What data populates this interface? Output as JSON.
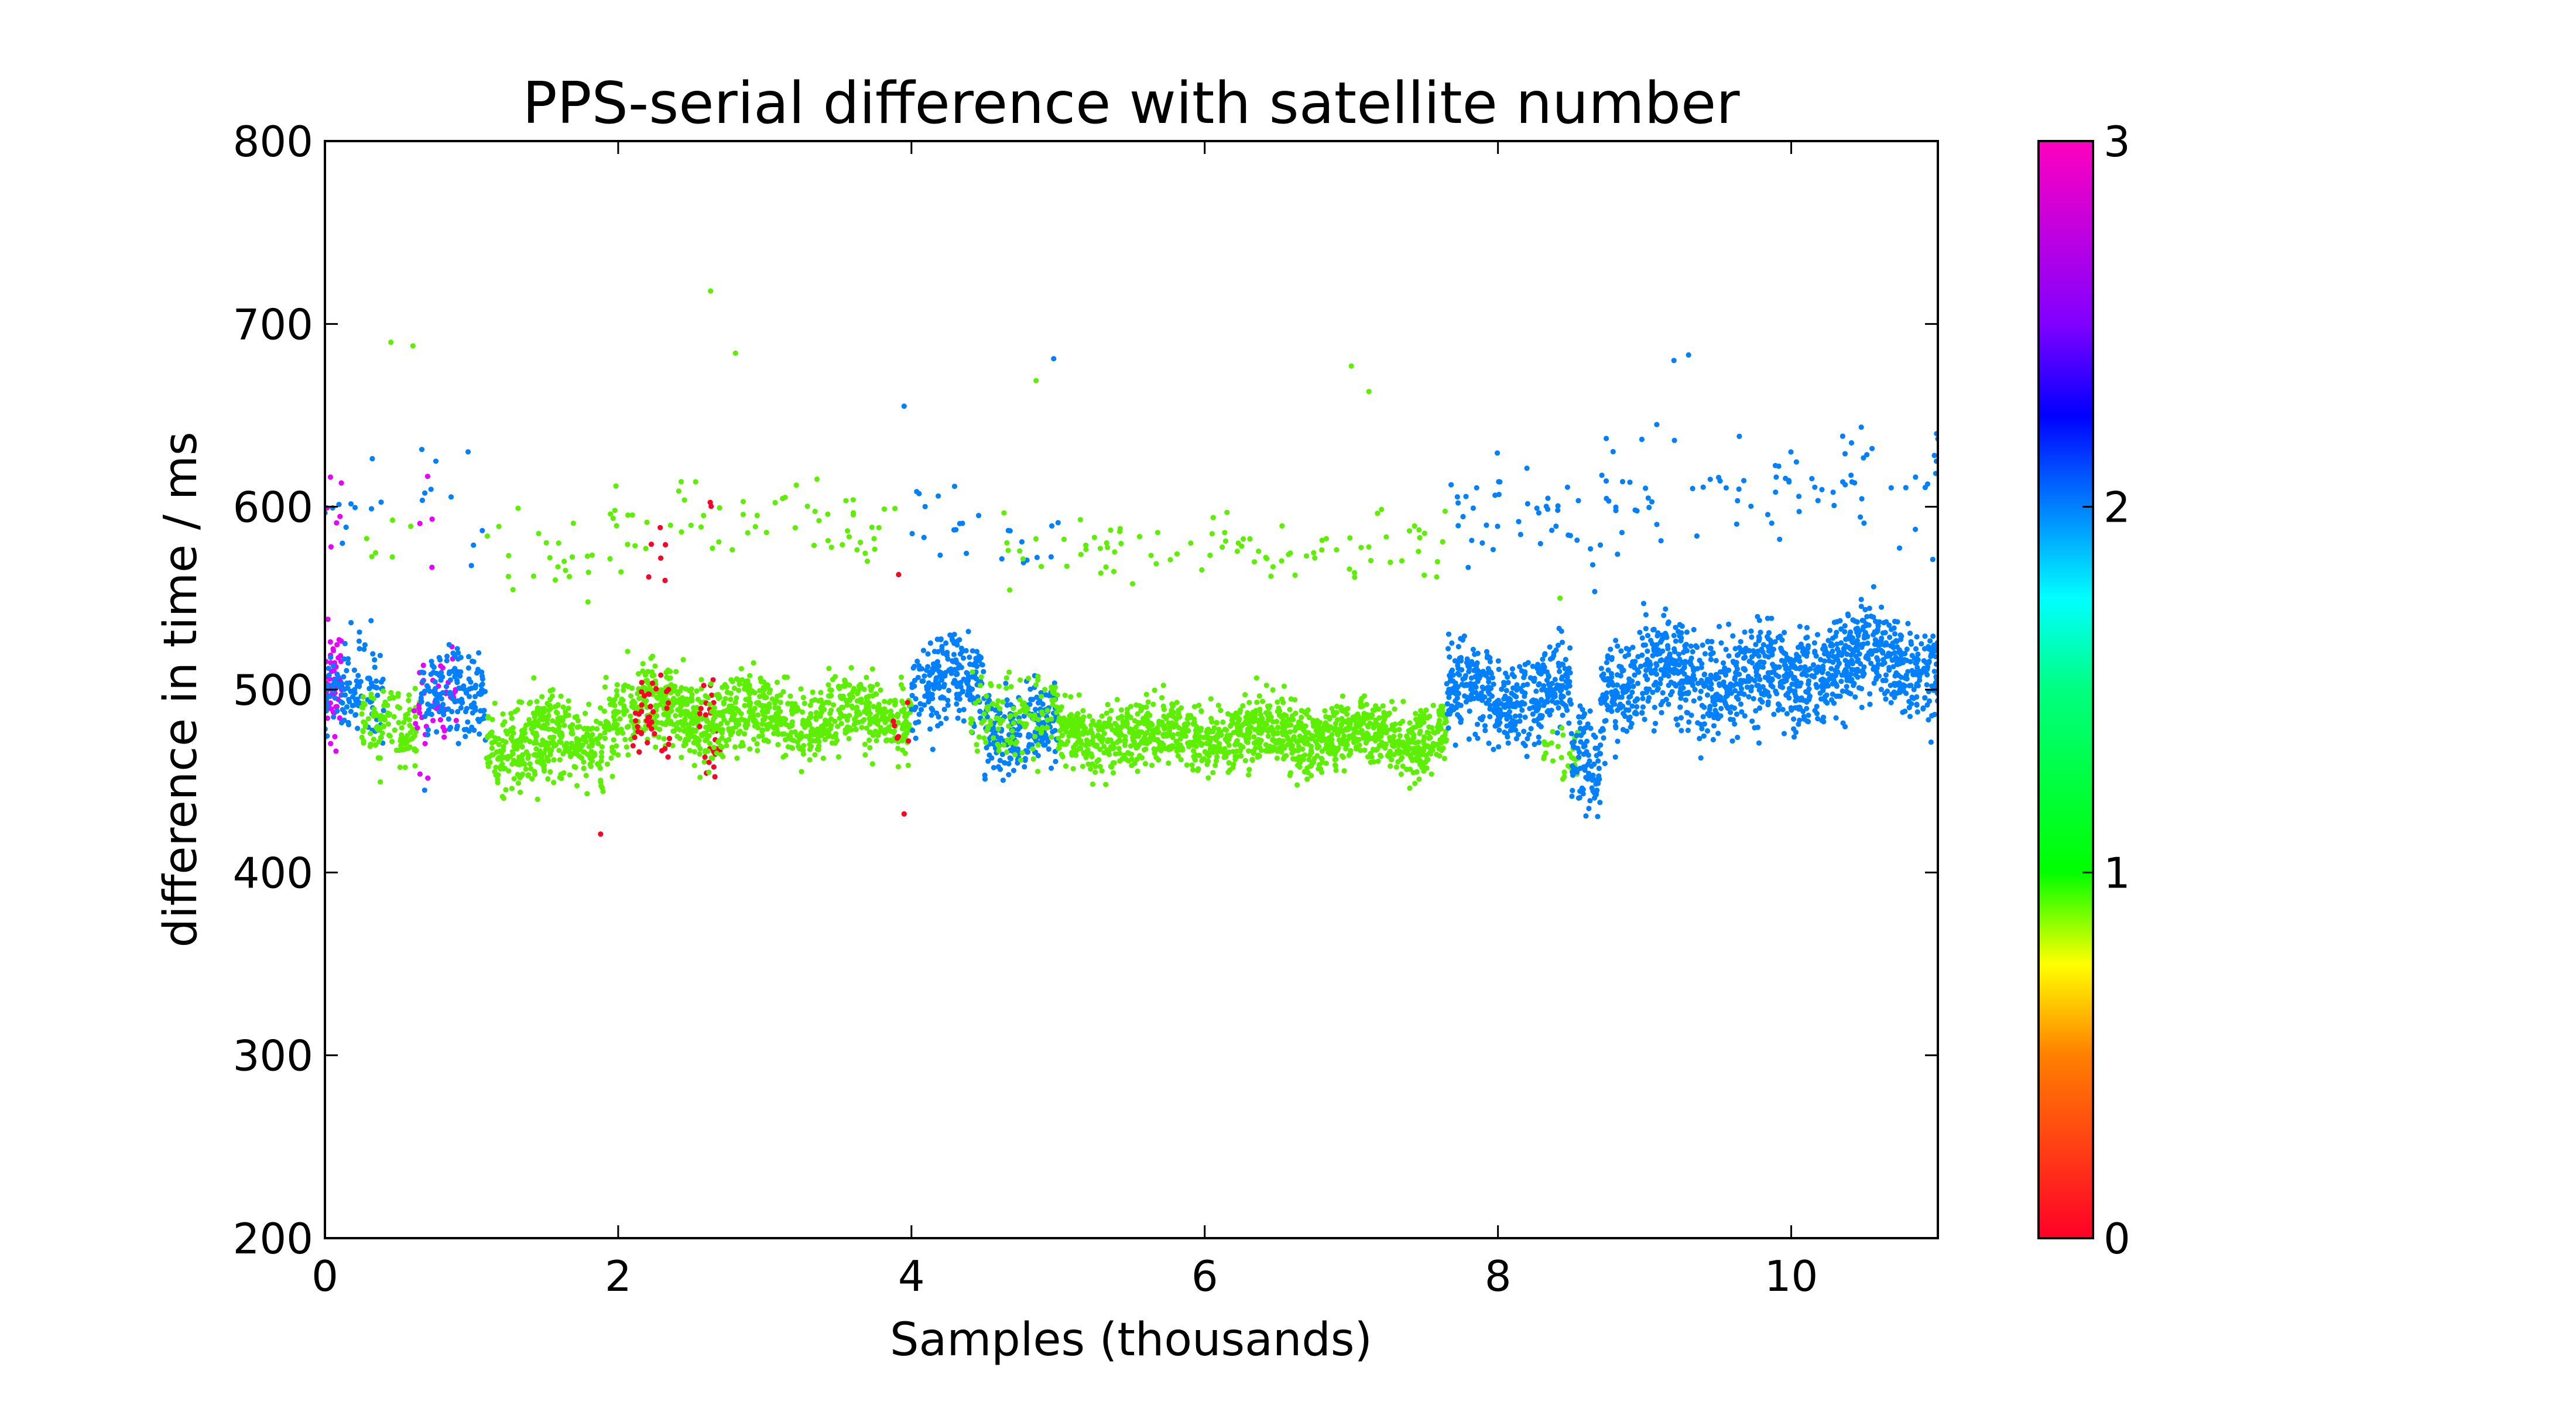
{
  "chart_data": {
    "type": "scatter",
    "title": "PPS-serial difference with satellite number",
    "xlabel": "Samples (thousands)",
    "ylabel": "difference in time / ms",
    "xlim": [
      0,
      11
    ],
    "ylim": [
      200,
      800
    ],
    "xticks": [
      0,
      2,
      4,
      6,
      8,
      10
    ],
    "yticks": [
      200,
      300,
      400,
      500,
      600,
      700,
      800
    ],
    "grid": false,
    "colorbar": {
      "label": "",
      "range": [
        0,
        3
      ],
      "ticks": [
        0,
        1,
        2,
        3
      ],
      "colormap": "gist_rainbow",
      "stops": [
        {
          "value": 0.0,
          "color": "#ff0028"
        },
        {
          "value": 0.5,
          "color": "#ff7f00"
        },
        {
          "value": 0.75,
          "color": "#ffff00"
        },
        {
          "value": 1.0,
          "color": "#00ff00"
        },
        {
          "value": 1.5,
          "color": "#00ff80"
        },
        {
          "value": 1.75,
          "color": "#00ffff"
        },
        {
          "value": 2.0,
          "color": "#0080ff"
        },
        {
          "value": 2.25,
          "color": "#0000ff"
        },
        {
          "value": 2.5,
          "color": "#8000ff"
        },
        {
          "value": 3.0,
          "color": "#ff00bf"
        }
      ]
    },
    "series_colors": {
      "0": "#ff0028",
      "1": "#5cf000",
      "2": "#0080ff",
      "3": "#e600ff"
    },
    "segments": [
      {
        "x": [
          0.0,
          0.12
        ],
        "sat": 3,
        "center": 500,
        "spread": 15,
        "n": 60,
        "upper_center": 598,
        "upper_n": 6
      },
      {
        "x": [
          0.0,
          0.4
        ],
        "sat": 2,
        "center": 495,
        "spread": 13,
        "n": 120,
        "upper_center": 598,
        "upper_n": 10
      },
      {
        "x": [
          0.25,
          0.65
        ],
        "sat": 1,
        "center": 482,
        "spread": 10,
        "n": 120,
        "upper_center": 580,
        "upper_n": 6
      },
      {
        "x": [
          0.6,
          0.9
        ],
        "sat": 3,
        "center": 490,
        "spread": 15,
        "n": 50,
        "upper_center": 596,
        "upper_n": 4
      },
      {
        "x": [
          0.65,
          1.1
        ],
        "sat": 2,
        "center": 495,
        "spread": 12,
        "n": 160,
        "upper_center": 600,
        "upper_n": 10
      },
      {
        "x": [
          1.1,
          1.9
        ],
        "sat": 1,
        "center": 472,
        "spread": 11,
        "n": 380,
        "upper_center": 575,
        "upper_n": 22
      },
      {
        "x": [
          1.9,
          2.6
        ],
        "sat": 1,
        "center": 487,
        "spread": 11,
        "n": 340,
        "upper_center": 588,
        "upper_n": 22
      },
      {
        "x": [
          2.1,
          2.35
        ],
        "sat": 0,
        "center": 478,
        "spread": 12,
        "n": 40,
        "upper_center": 578,
        "upper_n": 6
      },
      {
        "x": [
          2.55,
          2.7
        ],
        "sat": 0,
        "center": 485,
        "spread": 15,
        "n": 30,
        "upper_center": 590,
        "upper_n": 2
      },
      {
        "x": [
          2.6,
          4.0
        ],
        "sat": 1,
        "center": 485,
        "spread": 10,
        "n": 640,
        "upper_center": 590,
        "upper_n": 40
      },
      {
        "x": [
          3.85,
          3.98
        ],
        "sat": 0,
        "center": 480,
        "spread": 20,
        "n": 6,
        "upper_center": 580,
        "upper_n": 1
      },
      {
        "x": [
          4.0,
          4.5
        ],
        "sat": 2,
        "center": 502,
        "spread": 12,
        "n": 220,
        "upper_center": 598,
        "upper_n": 14
      },
      {
        "x": [
          4.5,
          5.0
        ],
        "sat": 2,
        "center": 480,
        "spread": 11,
        "n": 200,
        "upper_center": 578,
        "upper_n": 10
      },
      {
        "x": [
          4.4,
          5.0
        ],
        "sat": 1,
        "center": 485,
        "spread": 10,
        "n": 120,
        "upper_center": 582,
        "upper_n": 8
      },
      {
        "x": [
          5.0,
          7.65
        ],
        "sat": 1,
        "center": 475,
        "spread": 9,
        "n": 1300,
        "upper_center": 578,
        "upper_n": 80
      },
      {
        "x": [
          7.65,
          8.5
        ],
        "sat": 2,
        "center": 497,
        "spread": 12,
        "n": 420,
        "upper_center": 598,
        "upper_n": 36
      },
      {
        "x": [
          8.3,
          8.55
        ],
        "sat": 1,
        "center": 462,
        "spread": 8,
        "n": 30,
        "upper_center": 560,
        "upper_n": 1
      },
      {
        "x": [
          8.5,
          8.7
        ],
        "sat": 2,
        "center": 462,
        "spread": 12,
        "n": 90,
        "upper_center": 580,
        "upper_n": 6
      },
      {
        "x": [
          8.7,
          9.6
        ],
        "sat": 2,
        "center": 505,
        "spread": 14,
        "n": 460,
        "upper_center": 608,
        "upper_n": 30
      },
      {
        "x": [
          9.6,
          10.1
        ],
        "sat": 2,
        "center": 505,
        "spread": 13,
        "n": 260,
        "upper_center": 610,
        "upper_n": 20
      },
      {
        "x": [
          10.1,
          11.0
        ],
        "sat": 2,
        "center": 515,
        "spread": 13,
        "n": 480,
        "upper_center": 612,
        "upper_n": 34
      }
    ],
    "outliers": [
      {
        "x": 0.45,
        "y": 690,
        "sat": 1
      },
      {
        "x": 0.6,
        "y": 688,
        "sat": 1
      },
      {
        "x": 2.63,
        "y": 718,
        "sat": 1
      },
      {
        "x": 2.8,
        "y": 684,
        "sat": 1
      },
      {
        "x": 3.95,
        "y": 655,
        "sat": 2
      },
      {
        "x": 4.85,
        "y": 669,
        "sat": 1
      },
      {
        "x": 4.97,
        "y": 681,
        "sat": 2
      },
      {
        "x": 7.0,
        "y": 677,
        "sat": 1
      },
      {
        "x": 7.12,
        "y": 663,
        "sat": 1
      },
      {
        "x": 9.2,
        "y": 680,
        "sat": 2
      },
      {
        "x": 9.3,
        "y": 683,
        "sat": 2
      },
      {
        "x": 1.88,
        "y": 421,
        "sat": 0
      },
      {
        "x": 3.95,
        "y": 432,
        "sat": 0
      },
      {
        "x": 8.62,
        "y": 435,
        "sat": 2
      },
      {
        "x": 1.45,
        "y": 440,
        "sat": 1
      },
      {
        "x": 0.68,
        "y": 445,
        "sat": 2
      }
    ]
  }
}
